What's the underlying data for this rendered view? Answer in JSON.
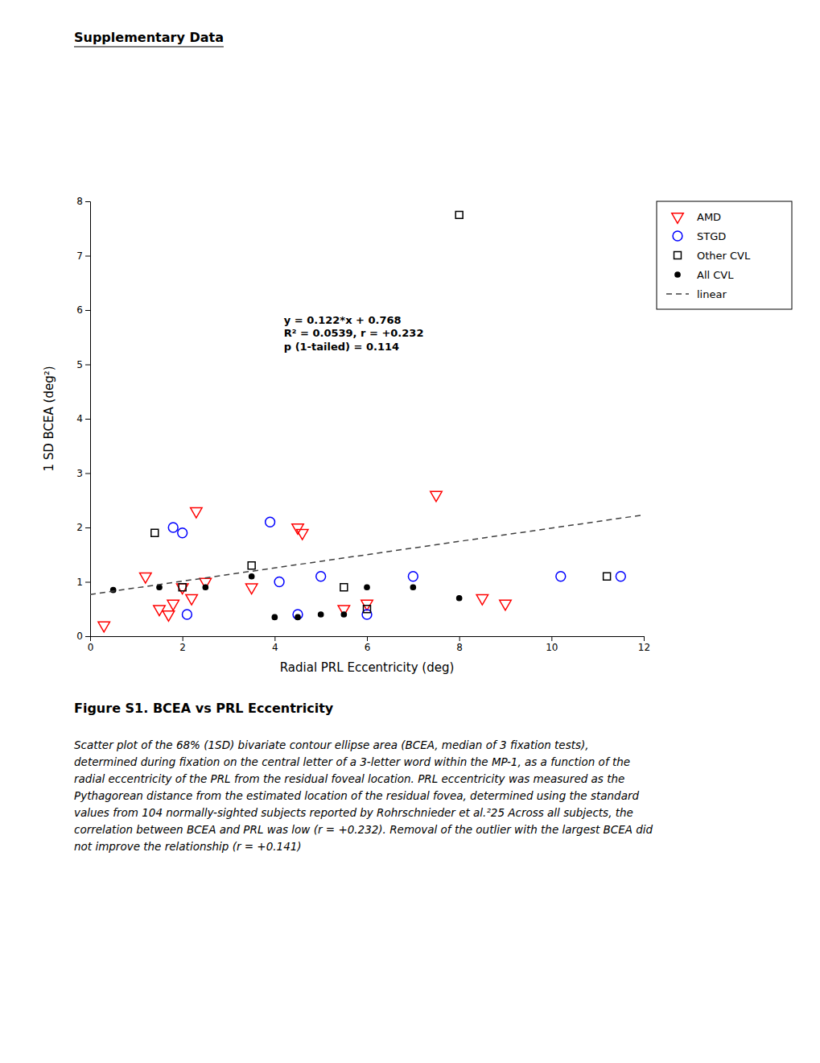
{
  "chart_data": {
    "type": "scatter",
    "title": "Supplementary Data",
    "x_label": "Radial PRL Eccentricity (deg)",
    "y_label": "1 SD BCEA (deg²)",
    "xlim": [
      0,
      12
    ],
    "ylim": [
      0,
      8
    ],
    "xticks": [
      0,
      2,
      4,
      6,
      8,
      10,
      12
    ],
    "yticks": [
      0,
      1,
      2,
      3,
      4,
      5,
      6,
      7,
      8
    ],
    "grid": false,
    "legend": "right",
    "annotations": [
      "y = 0.122*x + 0.768",
      "R² = 0.0539, r = +0.232",
      "p (1-tailed) = 0.114"
    ],
    "figure_label": "Figure S1. BCEA vs PRL Eccentricity",
    "caption": [
      "Scatter plot of the 68% (1SD) bivariate contour ellipse area (BCEA, median of 3 fixation tests),",
      "determined during fixation on the central letter of a 3-letter word within the MP-1, as a function of the",
      "radial eccentricity of the PRL from the residual foveal location. PRL eccentricity was measured as the",
      "Pythagorean distance from the estimated location of the residual fovea, determined using the standard",
      "values from 104 normally-sighted subjects reported by Rohrschnieder et al.²25 Across all subjects, the",
      "correlation between BCEA and PRL was low (r = +0.232). Removal of the outlier with the largest BCEA did",
      "not improve the relationship (r = +0.141)"
    ],
    "series": [
      {
        "name": "AMD",
        "type": "scatter",
        "color": "#ff0000",
        "marker": "triangle-down",
        "x": [
          0.3,
          1.2,
          1.5,
          1.7,
          1.8,
          2.0,
          2.2,
          2.3,
          2.5,
          3.5,
          4.5,
          4.6,
          5.5,
          6.0,
          7.5,
          8.5,
          9.0
        ],
        "values": [
          0.2,
          1.1,
          0.5,
          0.4,
          0.6,
          0.9,
          0.7,
          2.3,
          1.0,
          0.9,
          2.0,
          1.9,
          0.5,
          0.6,
          2.6,
          0.7,
          0.6
        ]
      },
      {
        "name": "STGD",
        "type": "scatter",
        "color": "#0000ff",
        "marker": "circle",
        "x": [
          1.8,
          2.0,
          2.1,
          3.9,
          4.1,
          4.5,
          5.0,
          6.0,
          7.0,
          10.2,
          11.5
        ],
        "values": [
          2.0,
          1.9,
          0.4,
          2.1,
          1.0,
          0.4,
          1.1,
          0.4,
          1.1,
          1.1,
          1.1
        ]
      },
      {
        "name": "Other CVL",
        "type": "scatter",
        "color": "#000000",
        "marker": "square",
        "x": [
          1.4,
          2.0,
          3.5,
          5.5,
          6.0,
          8.0,
          11.2
        ],
        "values": [
          1.9,
          0.9,
          1.3,
          0.9,
          0.5,
          7.75,
          1.1
        ]
      },
      {
        "name": "All CVL",
        "type": "scatter",
        "color": "#000000",
        "marker": "point",
        "x": [
          0.5,
          1.5,
          2.5,
          3.5,
          4.0,
          4.5,
          5.0,
          5.5,
          6.0,
          7.0,
          8.0
        ],
        "values": [
          0.85,
          0.9,
          0.9,
          1.1,
          0.35,
          0.35,
          0.4,
          0.4,
          0.9,
          0.9,
          0.7
        ]
      },
      {
        "name": "linear",
        "type": "line",
        "color": "#404040",
        "line_style": "dashed",
        "x": [
          0,
          12
        ],
        "values": [
          0.768,
          2.232
        ]
      }
    ]
  }
}
